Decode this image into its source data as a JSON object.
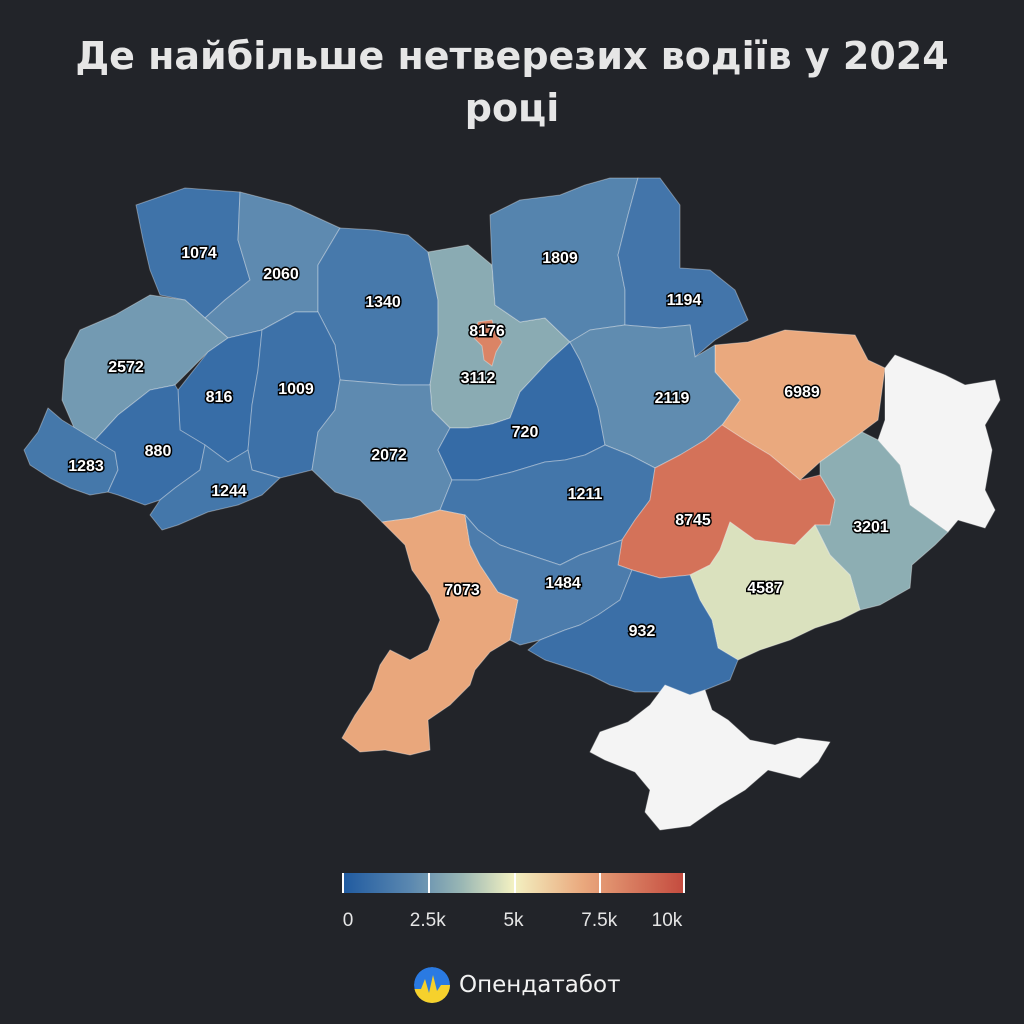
{
  "title": "Де найбільше нетверезих водіїв у 2024 році",
  "color_scale": {
    "min": 0,
    "max": 10000,
    "colors": [
      "#1f5aa0",
      "#5b88b0",
      "#9ab7b4",
      "#f3f1c2",
      "#eaa97e",
      "#c44a3e"
    ],
    "no_data_color": "#f4f4f4",
    "ticks": [
      {
        "value": 0,
        "label": "0"
      },
      {
        "value": 2500,
        "label": "2.5k"
      },
      {
        "value": 5000,
        "label": "5k"
      },
      {
        "value": 7500,
        "label": "7.5k"
      },
      {
        "value": 10000,
        "label": "10k"
      }
    ]
  },
  "regions": [
    {
      "id": "volyn",
      "value": 1074
    },
    {
      "id": "rivne",
      "value": 2060
    },
    {
      "id": "zhytomyr",
      "value": 1340
    },
    {
      "id": "kyiv-oblast",
      "value": 3112
    },
    {
      "id": "kyiv-city",
      "value": 8176
    },
    {
      "id": "chernihiv",
      "value": 1809
    },
    {
      "id": "sumy",
      "value": 1194
    },
    {
      "id": "kharkiv",
      "value": 6989
    },
    {
      "id": "luhansk",
      "value": null
    },
    {
      "id": "lviv",
      "value": 2572
    },
    {
      "id": "ternopil",
      "value": 816
    },
    {
      "id": "khmelnytskyi",
      "value": 1009
    },
    {
      "id": "vinnytsia",
      "value": 2072
    },
    {
      "id": "cherkasy",
      "value": 720
    },
    {
      "id": "poltava",
      "value": 2119
    },
    {
      "id": "zakarpattia",
      "value": 1283
    },
    {
      "id": "ivano-frankivsk",
      "value": 880
    },
    {
      "id": "chernivtsi",
      "value": 1244
    },
    {
      "id": "kirovohrad",
      "value": 1211
    },
    {
      "id": "dnipropetrovsk",
      "value": 8745
    },
    {
      "id": "donetsk",
      "value": 3201
    },
    {
      "id": "odesa",
      "value": 7073
    },
    {
      "id": "mykolaiv",
      "value": 1484
    },
    {
      "id": "zaporizhzhia",
      "value": 4587
    },
    {
      "id": "kherson",
      "value": 932
    },
    {
      "id": "crimea",
      "value": null
    }
  ],
  "brand": {
    "name": "Опендатабот"
  }
}
